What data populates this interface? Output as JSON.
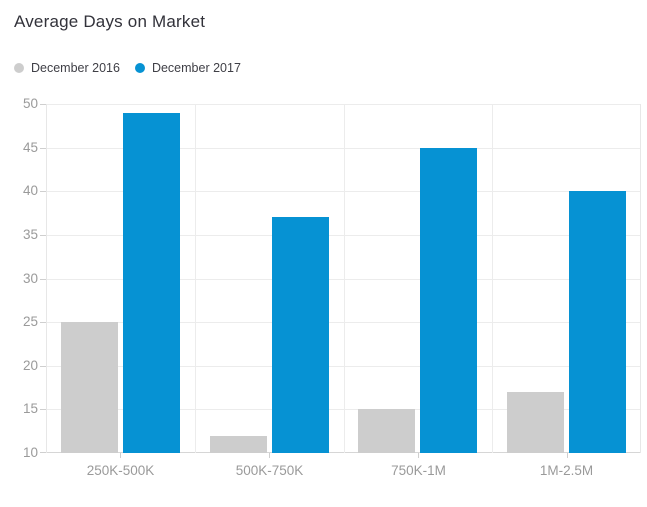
{
  "title": "Average Days on Market",
  "chart_data": {
    "type": "bar",
    "title": "Average Days on Market",
    "categories": [
      "250K-500K",
      "500K-750K",
      "750K-1M",
      "1M-2.5M"
    ],
    "series": [
      {
        "name": "December 2016",
        "color": "#cdcdcd",
        "values": [
          25,
          12,
          15,
          17
        ]
      },
      {
        "name": "December 2017",
        "color": "#0692d3",
        "values": [
          49,
          37,
          45,
          40
        ]
      }
    ],
    "xlabel": "",
    "ylabel": "",
    "ylim": [
      10,
      50
    ],
    "ytick_step": 5,
    "yticks": [
      10,
      15,
      20,
      25,
      30,
      35,
      40,
      45,
      50
    ],
    "grid": true,
    "legend_position": "top-left"
  },
  "colors": {
    "background": "#ffffff",
    "title_text": "#32323a",
    "legend_text": "#3f3f46",
    "axis_label_text": "#9a9a9a",
    "gridline": "#ececec",
    "axis_line": "#d6d6d6",
    "tick": "#cfcfcf",
    "series_december_2016": "#cdcdcd",
    "series_december_2017": "#0692d3"
  }
}
